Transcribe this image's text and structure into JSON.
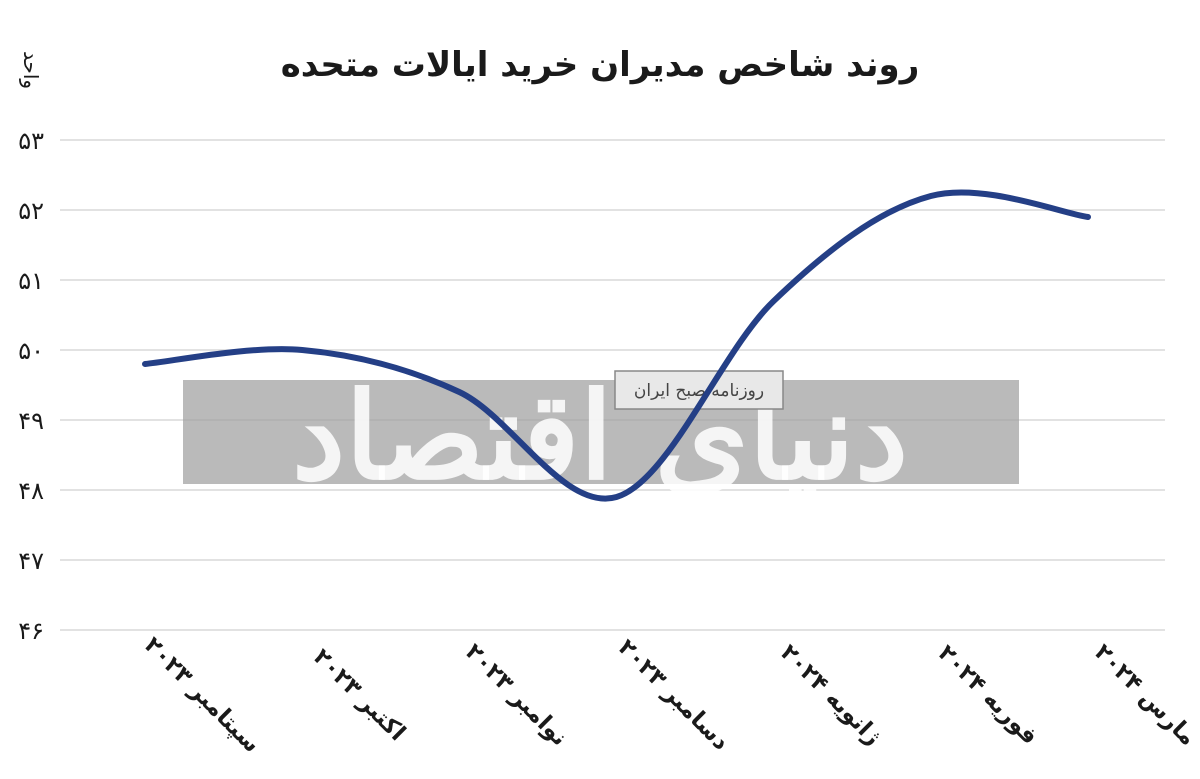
{
  "chart_data": {
    "type": "line",
    "title": "روند شاخص مدیران خرید ایالات متحده",
    "ylabel": "واحد",
    "categories": [
      "سپتامبر ۲۰۲۳",
      "اکتبر ۲۰۲۳",
      "نوامبر ۲۰۲۳",
      "دسامبر ۲۰۲۳",
      "ژانویه ۲۰۲۴",
      "فوریه ۲۰۲۴",
      "مارس ۲۰۲۴"
    ],
    "series": [
      {
        "values": [
          49.8,
          50.0,
          49.4,
          47.9,
          50.7,
          52.2,
          51.9
        ]
      }
    ],
    "ylim": [
      46,
      53
    ],
    "yticks": [
      {
        "value": 53,
        "label": "۵۳"
      },
      {
        "value": 52,
        "label": "۵۲"
      },
      {
        "value": 51,
        "label": "۵۱"
      },
      {
        "value": 50,
        "label": "۵۰"
      },
      {
        "value": 49,
        "label": "۴۹"
      },
      {
        "value": 48,
        "label": "۴۸"
      },
      {
        "value": 47,
        "label": "۴۷"
      },
      {
        "value": 46,
        "label": "۴۶"
      }
    ],
    "grid": true,
    "line_color": "#243f86",
    "grid_color": "#d0d0d0"
  },
  "watermark": {
    "brand": "دنیای اقتصاد",
    "tagline": "روزنامه صبح ایران",
    "band_color": "#a3a3a3"
  }
}
